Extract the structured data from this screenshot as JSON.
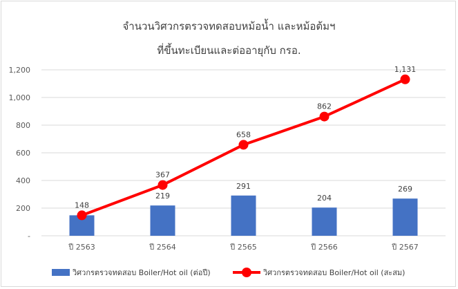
{
  "chart_data": {
    "type": "bar",
    "title": "จำนวนวิศวกรตรวจทดสอบหม้อน้ำ และหม้อต้มฯ",
    "subtitle": "ที่ขึ้นทะเบียนและต่ออายุกับ กรอ.",
    "categories": [
      "ปี 2563",
      "ปี 2564",
      "ปี 2565",
      "ปี 2566",
      "ปี 2567"
    ],
    "series": [
      {
        "name": "วิศวกรตรวจทดสอบ Boiler/Hot oil (ต่อปี)",
        "type": "bar",
        "values": [
          148,
          219,
          291,
          204,
          269
        ],
        "labels": [
          "148",
          "219",
          "291",
          "204",
          "269"
        ],
        "color": "#4472c4"
      },
      {
        "name": "วิศวกรตรวจทดสอบ Boiler/Hot oil (สะสม)",
        "type": "line",
        "values": [
          148,
          367,
          658,
          862,
          1131
        ],
        "labels": [
          "148",
          "367",
          "658",
          "862",
          "1,131"
        ],
        "color": "#ff0000"
      }
    ],
    "y_ticks": [
      "-",
      "200",
      "400",
      "600",
      "800",
      "1,000",
      "1,200"
    ],
    "ylim": [
      0,
      1200
    ],
    "grid": true,
    "legend_position": "bottom"
  }
}
